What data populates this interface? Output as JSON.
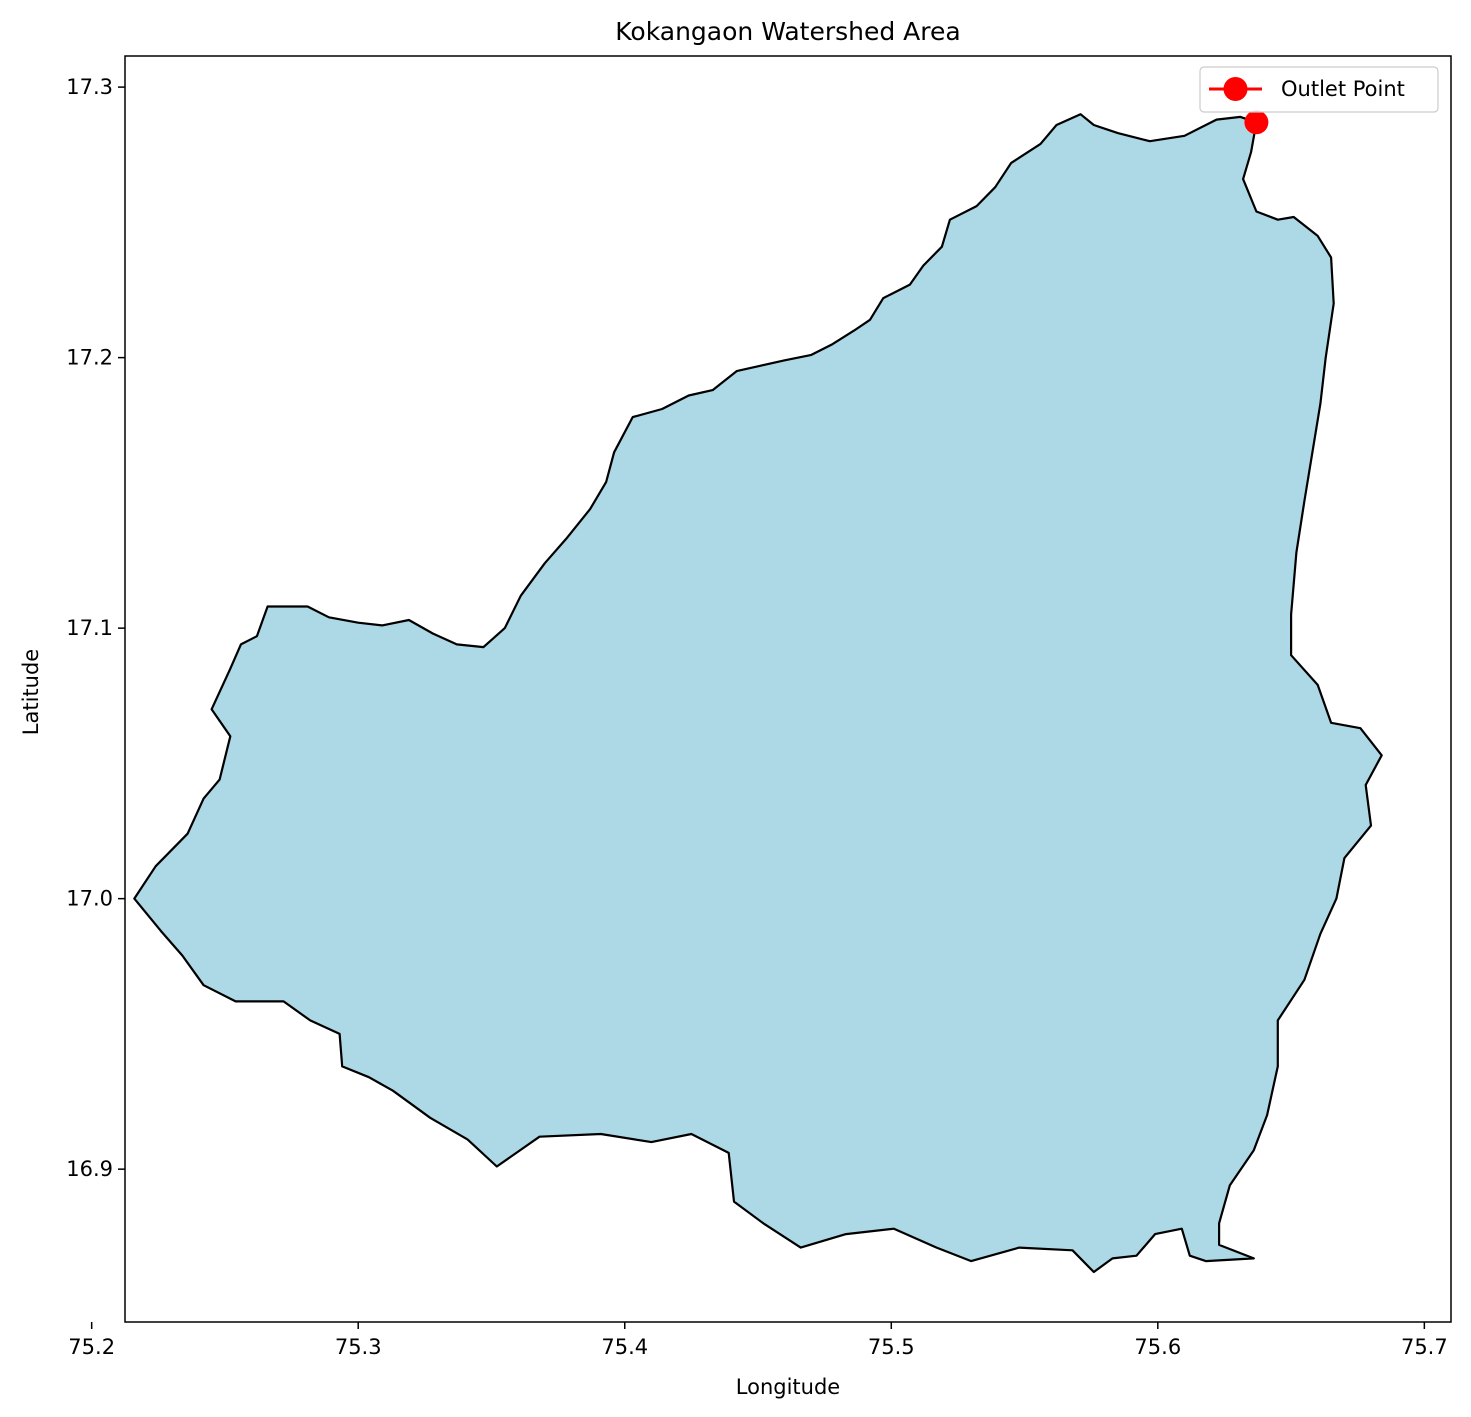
{
  "chart_data": {
    "type": "map",
    "title": "Kokangaon Watershed Area",
    "xlabel": "Longitude",
    "ylabel": "Latitude",
    "xlim": [
      75.2125,
      75.71
    ],
    "ylim": [
      16.8435,
      17.3115
    ],
    "x_ticks": [
      75.2,
      75.3,
      75.4,
      75.5,
      75.6,
      75.7
    ],
    "x_tick_labels": [
      "75.2",
      "75.3",
      "75.4",
      "75.5",
      "75.6",
      "75.7"
    ],
    "y_ticks": [
      16.9,
      17.0,
      17.1,
      17.2,
      17.3
    ],
    "y_tick_labels": [
      "16.9",
      "17.0",
      "17.1",
      "17.2",
      "17.3"
    ],
    "grid": false,
    "legend_position": "top-right",
    "legend": [
      {
        "label": "Outlet Point",
        "color": "#ff0000",
        "marker": "circle"
      }
    ],
    "outlet_point": {
      "lon": 75.637,
      "lat": 17.287
    },
    "watershed": {
      "fill_color": "#add8e6",
      "edge_color": "#000000",
      "boundary": [
        [
          75.637,
          17.287
        ],
        [
          75.635,
          17.276
        ],
        [
          75.632,
          17.266
        ],
        [
          75.637,
          17.254
        ],
        [
          75.645,
          17.251
        ],
        [
          75.651,
          17.252
        ],
        [
          75.66,
          17.245
        ],
        [
          75.665,
          17.237
        ],
        [
          75.666,
          17.22
        ],
        [
          75.663,
          17.2
        ],
        [
          75.661,
          17.183
        ],
        [
          75.658,
          17.165
        ],
        [
          75.655,
          17.147
        ],
        [
          75.652,
          17.128
        ],
        [
          75.65,
          17.105
        ],
        [
          75.65,
          17.09
        ],
        [
          75.66,
          17.079
        ],
        [
          75.665,
          17.065
        ],
        [
          75.676,
          17.063
        ],
        [
          75.684,
          17.053
        ],
        [
          75.678,
          17.042
        ],
        [
          75.68,
          17.027
        ],
        [
          75.67,
          17.015
        ],
        [
          75.667,
          17.0
        ],
        [
          75.661,
          16.987
        ],
        [
          75.655,
          16.97
        ],
        [
          75.645,
          16.955
        ],
        [
          75.645,
          16.938
        ],
        [
          75.641,
          16.92
        ],
        [
          75.636,
          16.907
        ],
        [
          75.627,
          16.894
        ],
        [
          75.623,
          16.88
        ],
        [
          75.623,
          16.872
        ],
        [
          75.636,
          16.867
        ],
        [
          75.618,
          16.866
        ],
        [
          75.612,
          16.868
        ],
        [
          75.609,
          16.878
        ],
        [
          75.599,
          16.876
        ],
        [
          75.592,
          16.868
        ],
        [
          75.583,
          16.867
        ],
        [
          75.576,
          16.862
        ],
        [
          75.568,
          16.87
        ],
        [
          75.548,
          16.871
        ],
        [
          75.53,
          16.866
        ],
        [
          75.517,
          16.871
        ],
        [
          75.501,
          16.878
        ],
        [
          75.483,
          16.876
        ],
        [
          75.466,
          16.871
        ],
        [
          75.452,
          16.88
        ],
        [
          75.441,
          16.888
        ],
        [
          75.439,
          16.906
        ],
        [
          75.425,
          16.913
        ],
        [
          75.41,
          16.91
        ],
        [
          75.391,
          16.913
        ],
        [
          75.368,
          16.912
        ],
        [
          75.352,
          16.901
        ],
        [
          75.341,
          16.911
        ],
        [
          75.327,
          16.919
        ],
        [
          75.313,
          16.929
        ],
        [
          75.304,
          16.934
        ],
        [
          75.294,
          16.938
        ],
        [
          75.293,
          16.95
        ],
        [
          75.282,
          16.955
        ],
        [
          75.272,
          16.962
        ],
        [
          75.254,
          16.962
        ],
        [
          75.242,
          16.968
        ],
        [
          75.234,
          16.979
        ],
        [
          75.226,
          16.988
        ],
        [
          75.216,
          17.0
        ],
        [
          75.224,
          17.012
        ],
        [
          75.236,
          17.024
        ],
        [
          75.242,
          17.037
        ],
        [
          75.248,
          17.044
        ],
        [
          75.252,
          17.06
        ],
        [
          75.245,
          17.07
        ],
        [
          75.252,
          17.085
        ],
        [
          75.256,
          17.094
        ],
        [
          75.262,
          17.097
        ],
        [
          75.266,
          17.108
        ],
        [
          75.273,
          17.108
        ],
        [
          75.281,
          17.108
        ],
        [
          75.289,
          17.104
        ],
        [
          75.3,
          17.102
        ],
        [
          75.309,
          17.101
        ],
        [
          75.319,
          17.103
        ],
        [
          75.328,
          17.098
        ],
        [
          75.337,
          17.094
        ],
        [
          75.347,
          17.093
        ],
        [
          75.355,
          17.1
        ],
        [
          75.361,
          17.112
        ],
        [
          75.37,
          17.124
        ],
        [
          75.378,
          17.133
        ],
        [
          75.387,
          17.144
        ],
        [
          75.393,
          17.154
        ],
        [
          75.396,
          17.165
        ],
        [
          75.403,
          17.178
        ],
        [
          75.414,
          17.181
        ],
        [
          75.424,
          17.186
        ],
        [
          75.433,
          17.188
        ],
        [
          75.442,
          17.195
        ],
        [
          75.451,
          17.197
        ],
        [
          75.46,
          17.199
        ],
        [
          75.47,
          17.201
        ],
        [
          75.478,
          17.205
        ],
        [
          75.486,
          17.21
        ],
        [
          75.492,
          17.214
        ],
        [
          75.497,
          17.222
        ],
        [
          75.507,
          17.227
        ],
        [
          75.512,
          17.234
        ],
        [
          75.519,
          17.241
        ],
        [
          75.522,
          17.251
        ],
        [
          75.532,
          17.256
        ],
        [
          75.539,
          17.263
        ],
        [
          75.545,
          17.272
        ],
        [
          75.556,
          17.279
        ],
        [
          75.562,
          17.286
        ],
        [
          75.571,
          17.29
        ],
        [
          75.576,
          17.286
        ],
        [
          75.585,
          17.283
        ],
        [
          75.597,
          17.28
        ],
        [
          75.61,
          17.282
        ],
        [
          75.622,
          17.288
        ],
        [
          75.631,
          17.289
        ],
        [
          75.637,
          17.287
        ]
      ]
    }
  }
}
